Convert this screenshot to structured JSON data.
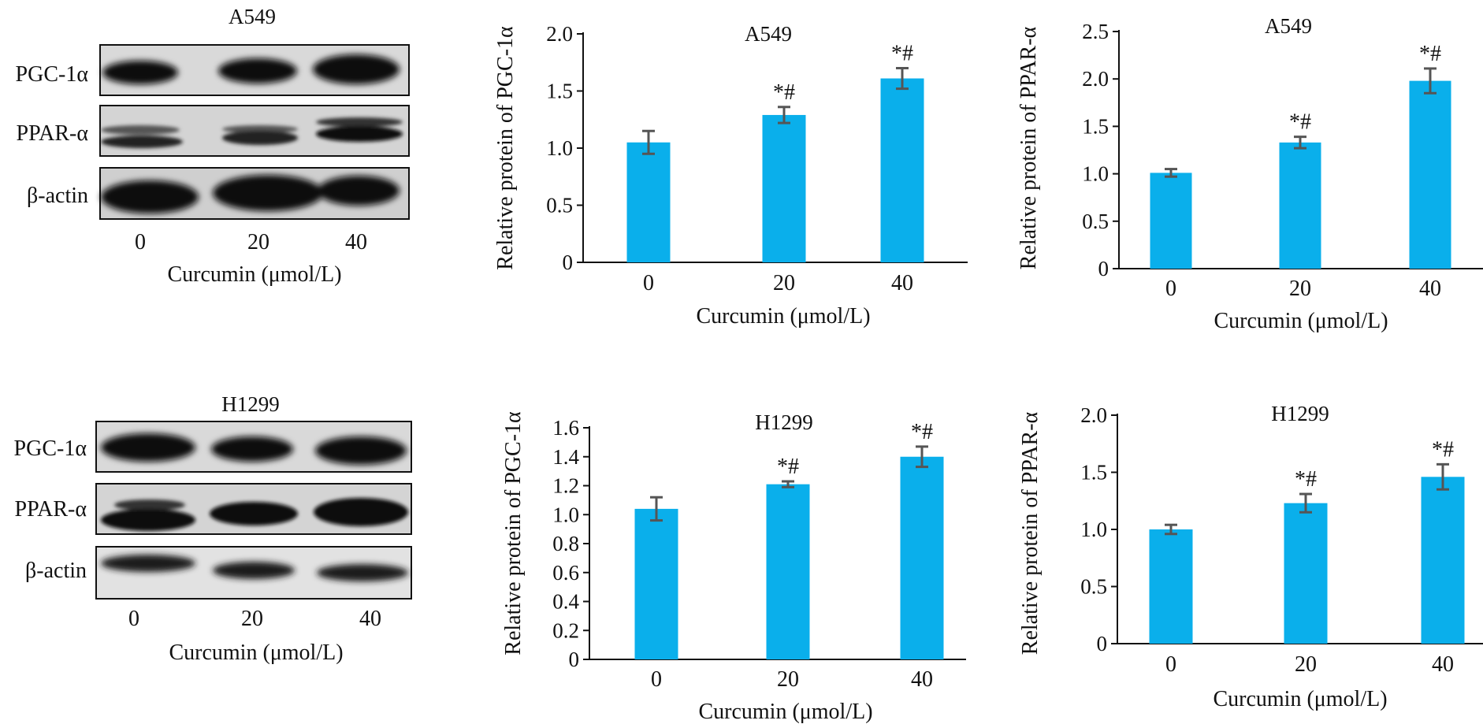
{
  "blots": [
    {
      "title": "A549",
      "row_labels": [
        "PGC-1α",
        "PPAR-α",
        "β-actin"
      ],
      "lane_labels": [
        "0",
        "20",
        "40"
      ],
      "xlabel": "Curcumin (μmol/L)"
    },
    {
      "title": "H1299",
      "row_labels": [
        "PGC-1α",
        "PPAR-α",
        "β-actin"
      ],
      "lane_labels": [
        "0",
        "20",
        "40"
      ],
      "xlabel": "Curcumin (μmol/L)"
    }
  ],
  "colors": {
    "bar": "#0AAFEB",
    "error": "#555555",
    "axis": "#111111"
  },
  "chart_data": [
    {
      "type": "bar",
      "title": "A549",
      "xlabel": "Curcumin (μmol/L)",
      "ylabel": "Relative protein of PGC-1α",
      "categories": [
        "0",
        "20",
        "40"
      ],
      "values": [
        1.05,
        1.29,
        1.61
      ],
      "errors": [
        0.1,
        0.07,
        0.09
      ],
      "annotations": [
        "",
        "*#",
        "*#"
      ],
      "ylim": [
        0,
        2.0
      ],
      "yticks": [
        "0",
        "0.5",
        "1.0",
        "1.5",
        "2.0"
      ]
    },
    {
      "type": "bar",
      "title": "A549",
      "xlabel": "Curcumin (μmol/L)",
      "ylabel": "Relative protein of PPAR-α",
      "categories": [
        "0",
        "20",
        "40"
      ],
      "values": [
        1.01,
        1.33,
        1.98
      ],
      "errors": [
        0.04,
        0.06,
        0.13
      ],
      "annotations": [
        "",
        "*#",
        "*#"
      ],
      "ylim": [
        0,
        2.5
      ],
      "yticks": [
        "0",
        "0.5",
        "1.0",
        "1.5",
        "2.0",
        "2.5"
      ]
    },
    {
      "type": "bar",
      "title": "H1299",
      "xlabel": "Curcumin (μmol/L)",
      "ylabel": "Relative protein of PGC-1α",
      "categories": [
        "0",
        "20",
        "40"
      ],
      "values": [
        1.04,
        1.21,
        1.4
      ],
      "errors": [
        0.08,
        0.02,
        0.07
      ],
      "annotations": [
        "",
        "*#",
        "*#"
      ],
      "ylim": [
        0,
        1.6
      ],
      "yticks": [
        "0",
        "0.2",
        "0.4",
        "0.6",
        "0.8",
        "1.0",
        "1.2",
        "1.4",
        "1.6"
      ]
    },
    {
      "type": "bar",
      "title": "H1299",
      "xlabel": "Curcumin (μmol/L)",
      "ylabel": "Relative protein of PPAR-α",
      "categories": [
        "0",
        "20",
        "40"
      ],
      "values": [
        1.0,
        1.23,
        1.46
      ],
      "errors": [
        0.04,
        0.08,
        0.11
      ],
      "annotations": [
        "",
        "*#",
        "*#"
      ],
      "ylim": [
        0,
        2.0
      ],
      "yticks": [
        "0",
        "0.5",
        "1.0",
        "1.5",
        "2.0"
      ]
    }
  ]
}
